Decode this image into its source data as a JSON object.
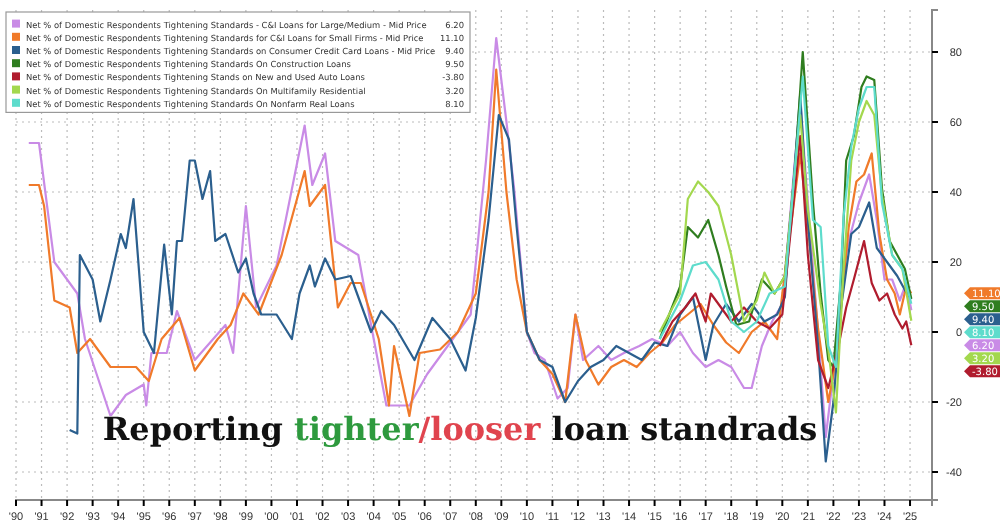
{
  "chart_data": {
    "type": "line",
    "xlim": [
      1990,
      2025.86
    ],
    "ylim": [
      -48,
      92
    ],
    "xticks": [
      {
        "value": 1990,
        "label": "'90"
      },
      {
        "value": 1991,
        "label": "'91"
      },
      {
        "value": 1992,
        "label": "'92"
      },
      {
        "value": 1993,
        "label": "'93"
      },
      {
        "value": 1994,
        "label": "'94"
      },
      {
        "value": 1995,
        "label": "'95"
      },
      {
        "value": 1996,
        "label": "'96"
      },
      {
        "value": 1997,
        "label": "'97"
      },
      {
        "value": 1998,
        "label": "'98"
      },
      {
        "value": 1999,
        "label": "'99"
      },
      {
        "value": 2000,
        "label": "'00"
      },
      {
        "value": 2001,
        "label": "'01"
      },
      {
        "value": 2002,
        "label": "'02"
      },
      {
        "value": 2003,
        "label": "'03"
      },
      {
        "value": 2004,
        "label": "'04"
      },
      {
        "value": 2005,
        "label": "'05"
      },
      {
        "value": 2006,
        "label": "'06"
      },
      {
        "value": 2007,
        "label": "'07"
      },
      {
        "value": 2008,
        "label": "'08"
      },
      {
        "value": 2009,
        "label": "'09"
      },
      {
        "value": 2010,
        "label": "'10"
      },
      {
        "value": 2011,
        "label": "'11"
      },
      {
        "value": 2012,
        "label": "'12"
      },
      {
        "value": 2013,
        "label": "'13"
      },
      {
        "value": 2014,
        "label": "'14"
      },
      {
        "value": 2015,
        "label": "'15"
      },
      {
        "value": 2016,
        "label": "'16"
      },
      {
        "value": 2017,
        "label": "'17"
      },
      {
        "value": 2018,
        "label": "'18"
      },
      {
        "value": 2019,
        "label": "'19"
      },
      {
        "value": 2020,
        "label": "'20"
      },
      {
        "value": 2021,
        "label": "'21"
      },
      {
        "value": 2022,
        "label": "'22"
      },
      {
        "value": 2023,
        "label": "'23"
      },
      {
        "value": 2024,
        "label": "'24"
      },
      {
        "value": 2025,
        "label": "'25"
      }
    ],
    "yticks": [
      -40,
      -20,
      0,
      20,
      40,
      60,
      80
    ],
    "grid": true,
    "legend": "top left",
    "marker": "none",
    "line_style": "solid",
    "annotations": [
      "Reporting tighter/looser loan standrads",
      "6.20",
      "11.10",
      "9.40",
      "9.50",
      "-3.80",
      "3.20",
      "8.10"
    ],
    "series": [
      {
        "name": "Net % of Domestic Respondents Tightening Standards - C&I Loans for Large/Medium - Mid Price",
        "color": "#c98be6",
        "x": [
          1990.5,
          1990.9,
          1991.5,
          1992.4,
          1992.7,
          1993.7,
          1994.3,
          1995.0,
          1995.1,
          1995.3,
          1995.9,
          1996.3,
          1997.0,
          1998.2,
          1998.5,
          1999.0,
          1999.4,
          2000.2,
          2001.3,
          2001.6,
          2002.1,
          2002.5,
          2003.4,
          2003.9,
          2004.5,
          2005.4,
          2006.1,
          2007.8,
          2008.4,
          2008.8,
          2009.2,
          2009.5,
          2010.0,
          2010.3,
          2010.7,
          2011.2,
          2011.6,
          2011.9,
          2012.2,
          2012.8,
          2013.3,
          2013.8,
          2014.4,
          2014.9,
          2015.5,
          2016.0,
          2016.5,
          2017.0,
          2017.5,
          2018.0,
          2018.5,
          2018.8,
          2019.2,
          2019.6,
          2020.0,
          2020.7,
          2021.0,
          2021.4,
          2021.7,
          2022.0,
          2022.3,
          2022.6,
          2023.0,
          2023.4,
          2023.7,
          2024.0,
          2024.3,
          2024.6,
          2024.85,
          2025.05
        ],
        "values": [
          54,
          54,
          20,
          11,
          -2,
          -24,
          -18,
          -15,
          -21,
          -6,
          -6,
          6,
          -8,
          2,
          -6,
          36,
          7,
          19,
          59,
          42,
          51,
          26,
          22,
          2,
          -21,
          -21,
          -12,
          5,
          49,
          84,
          60,
          41,
          0,
          -6,
          -8,
          -19,
          -16,
          5,
          -8,
          -4,
          -8,
          -6,
          -4,
          -2,
          -4,
          0,
          -6,
          -10,
          -8,
          -10,
          -16,
          -16,
          -4,
          3,
          8,
          66,
          37,
          0,
          -30,
          -12,
          15,
          26,
          37,
          45,
          32,
          15,
          15,
          9,
          14,
          6.2
        ]
      },
      {
        "name": "Net % of Domestic Respondents Tightening Standards for C&I Loans for Small Firms - Mid Price",
        "color": "#f07a2a",
        "x": [
          1990.5,
          1990.9,
          1991.1,
          1991.5,
          1992.1,
          1992.4,
          1992.9,
          1993.7,
          1994.7,
          1995.2,
          1995.7,
          1996.4,
          1997.0,
          1997.9,
          1998.4,
          1998.9,
          1999.5,
          2000.4,
          2001.3,
          2001.5,
          2002.1,
          2002.6,
          2003.1,
          2003.5,
          2004.2,
          2004.6,
          2004.8,
          2005.4,
          2005.8,
          2006.6,
          2007.3,
          2008.0,
          2008.5,
          2008.8,
          2009.2,
          2009.6,
          2010.0,
          2010.5,
          2011.0,
          2011.5,
          2011.9,
          2012.3,
          2012.8,
          2013.3,
          2013.8,
          2014.3,
          2014.8,
          2015.3,
          2015.8,
          2016.3,
          2016.8,
          2017.3,
          2017.8,
          2018.3,
          2018.8,
          2019.3,
          2019.8,
          2020.0,
          2020.7,
          2021.0,
          2021.4,
          2021.8,
          2022.0,
          2022.3,
          2022.6,
          2022.9,
          2023.2,
          2023.5,
          2023.8,
          2024.1,
          2024.4,
          2024.6,
          2024.85,
          2025.05
        ],
        "values": [
          42,
          42,
          36,
          9,
          7,
          -6,
          -2,
          -10,
          -10,
          -14,
          -2,
          4,
          -11,
          -2,
          2,
          11,
          5,
          22,
          46,
          36,
          42,
          7,
          14,
          14,
          -2,
          -21,
          -4,
          -24,
          -6,
          -5,
          0,
          11,
          40,
          75,
          40,
          15,
          0,
          -8,
          -12,
          -20,
          5,
          -8,
          -15,
          -10,
          -8,
          -10,
          -6,
          -3,
          2,
          5,
          8,
          2,
          -3,
          -6,
          0,
          3,
          -2,
          11,
          51,
          30,
          1,
          -20,
          -12,
          7,
          30,
          43,
          45,
          51,
          28,
          15,
          11,
          5,
          13,
          11.1
        ]
      },
      {
        "name": "Net % of Domestic Respondents Tightening Standards on Consumer Credit Card Loans - Mid Price",
        "color": "#2b5f8e",
        "x": [
          1992.1,
          1992.4,
          1992.5,
          1993.0,
          1993.3,
          1993.7,
          1994.1,
          1994.3,
          1994.6,
          1995.0,
          1995.4,
          1995.8,
          1996.1,
          1996.3,
          1996.5,
          1996.8,
          1997.0,
          1997.3,
          1997.6,
          1997.8,
          1998.2,
          1998.7,
          1999.0,
          1999.3,
          1999.6,
          2000.2,
          2000.8,
          2001.1,
          2001.5,
          2001.7,
          2002.1,
          2002.5,
          2003.1,
          2003.9,
          2004.3,
          2004.8,
          2005.6,
          2006.3,
          2007.0,
          2007.6,
          2008.0,
          2008.5,
          2008.9,
          2009.3,
          2009.6,
          2010.0,
          2010.5,
          2011.0,
          2011.5,
          2012.0,
          2012.5,
          2013.0,
          2013.5,
          2014.0,
          2014.5,
          2015.0,
          2015.5,
          2016.0,
          2016.5,
          2017.0,
          2017.3,
          2017.8,
          2018.3,
          2018.8,
          2019.3,
          2019.8,
          2020.1,
          2020.7,
          2021.0,
          2021.4,
          2021.7,
          2022.0,
          2022.3,
          2022.7,
          2023.0,
          2023.4,
          2023.7,
          2024.1,
          2024.5,
          2024.8,
          2025.05
        ],
        "values": [
          -28,
          -29,
          22,
          15,
          3,
          15,
          28,
          24,
          38,
          0,
          -6,
          25,
          5,
          26,
          26,
          49,
          49,
          38,
          46,
          26,
          28,
          17,
          21,
          11,
          5,
          5,
          -2,
          11,
          19,
          13,
          21,
          15,
          16,
          0,
          6,
          2,
          -8,
          4,
          -2,
          -11,
          4,
          32,
          62,
          55,
          30,
          0,
          -8,
          -10,
          -20,
          -14,
          -10,
          -8,
          -4,
          -6,
          -8,
          -3,
          -4,
          5,
          10,
          -8,
          2,
          8,
          3,
          8,
          3,
          5,
          10,
          68,
          32,
          -4,
          -37,
          -20,
          7,
          28,
          30,
          37,
          24,
          20,
          16,
          12,
          9.4
        ]
      },
      {
        "name": "Net % of Domestic Respondents Tightening Standards On Construction Loans",
        "color": "#2f7d1f",
        "x": [
          2015.2,
          2016.0,
          2016.3,
          2016.7,
          2017.1,
          2017.5,
          2017.8,
          2018.2,
          2018.7,
          2019.2,
          2019.7,
          2020.1,
          2020.5,
          2020.8,
          2021.2,
          2021.5,
          2021.8,
          2022.0,
          2022.3,
          2022.5,
          2022.8,
          2023.1,
          2023.3,
          2023.6,
          2023.9,
          2024.2,
          2024.5,
          2024.8,
          2025.05
        ],
        "values": [
          -2,
          13,
          30,
          27,
          32,
          22,
          13,
          2,
          3,
          15,
          11,
          16,
          47,
          80,
          37,
          11,
          -8,
          -10,
          15,
          49,
          56,
          70,
          73,
          72,
          41,
          26,
          22,
          18,
          9.5
        ]
      },
      {
        "name": "Net % of Domestic Respondents Tightening Stands on New and Used Auto Loans",
        "color": "#b01c2e",
        "x": [
          2015.2,
          2015.7,
          2016.2,
          2016.6,
          2017.0,
          2017.2,
          2017.6,
          2018.0,
          2018.5,
          2019.0,
          2019.5,
          2020.0,
          2020.7,
          2021.0,
          2021.4,
          2021.8,
          2022.2,
          2022.5,
          2022.8,
          2023.2,
          2023.5,
          2023.8,
          2024.1,
          2024.4,
          2024.7,
          2024.85,
          2025.05
        ],
        "values": [
          -4,
          3,
          7,
          11,
          3,
          11,
          7,
          3,
          7,
          3,
          1,
          5,
          56,
          22,
          -8,
          -16,
          -4,
          7,
          15,
          26,
          14,
          9,
          11,
          5,
          1,
          3,
          -3.8
        ]
      },
      {
        "name": "Net % of Domestic Respondents Tightening Standards On Multifamily Residential",
        "color": "#a3d84e",
        "x": [
          2015.2,
          2016.0,
          2016.3,
          2016.7,
          2017.1,
          2017.5,
          2018.0,
          2018.5,
          2019.0,
          2019.3,
          2019.7,
          2020.1,
          2020.7,
          2021.0,
          2021.5,
          2021.8,
          2022.1,
          2022.4,
          2022.7,
          2023.0,
          2023.3,
          2023.6,
          2023.9,
          2024.3,
          2024.7,
          2025.05
        ],
        "values": [
          0,
          11,
          38,
          43,
          40,
          36,
          22,
          3,
          9,
          17,
          11,
          16,
          62,
          35,
          8,
          -5,
          -23,
          18,
          49,
          60,
          66,
          62,
          39,
          22,
          18,
          3.2
        ]
      },
      {
        "name": "Net % of Domestic Respondents Tightening Standards On Nonfarm Real Loans",
        "color": "#5edccc",
        "x": [
          2015.2,
          2016.0,
          2016.5,
          2017.0,
          2017.5,
          2018.0,
          2018.5,
          2019.0,
          2019.5,
          2020.1,
          2020.8,
          2021.2,
          2021.5,
          2021.8,
          2022.1,
          2022.4,
          2022.7,
          2023.0,
          2023.3,
          2023.6,
          2023.9,
          2024.3,
          2024.7,
          2025.05
        ],
        "values": [
          -2,
          9,
          19,
          20,
          15,
          3,
          0,
          3,
          11,
          13,
          73,
          32,
          30,
          -4,
          -10,
          33,
          53,
          64,
          70,
          70,
          37,
          22,
          18,
          8.1
        ]
      }
    ]
  }
}
